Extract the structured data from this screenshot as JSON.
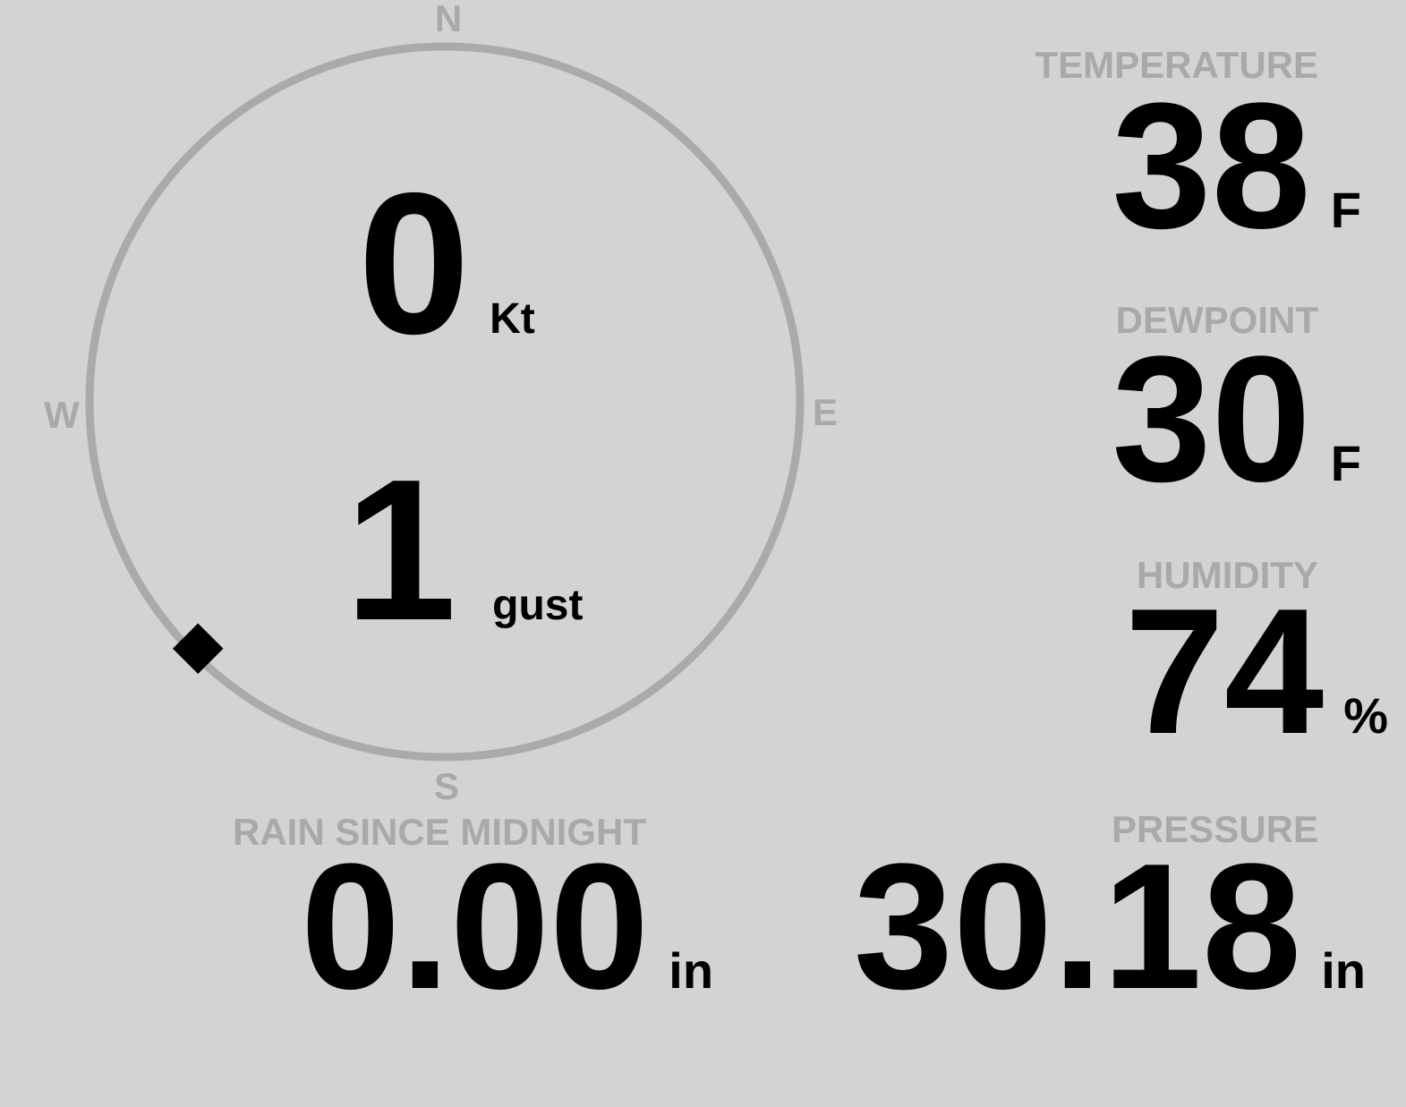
{
  "compass": {
    "north": "N",
    "east": "E",
    "south": "S",
    "west": "W",
    "wind_direction_deg": 225,
    "ring_color": "#aaaaaa"
  },
  "wind": {
    "speed": "0",
    "speed_unit": "Kt",
    "gust": "1",
    "gust_unit": "gust"
  },
  "temperature": {
    "label": "TEMPERATURE",
    "value": "38",
    "unit": "F"
  },
  "dewpoint": {
    "label": "DEWPOINT",
    "value": "30",
    "unit": "F"
  },
  "humidity": {
    "label": "HUMIDITY",
    "value": "74",
    "unit": "%"
  },
  "rain": {
    "label": "RAIN SINCE MIDNIGHT",
    "value": "0.00",
    "unit": "in"
  },
  "pressure": {
    "label": "PRESSURE",
    "value": "30.18",
    "unit": "in"
  }
}
